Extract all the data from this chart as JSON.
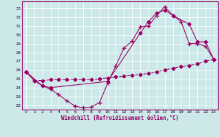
{
  "xlabel": "Windchill (Refroidissement éolien,°C)",
  "bg_color": "#cce8e8",
  "line_color": "#990066",
  "xmin": -0.5,
  "xmax": 23.5,
  "ymin": 21.5,
  "ymax": 33.8,
  "yticks": [
    22,
    23,
    24,
    25,
    26,
    27,
    28,
    29,
    30,
    31,
    32,
    33
  ],
  "xticks": [
    0,
    1,
    2,
    3,
    4,
    5,
    6,
    7,
    8,
    9,
    10,
    11,
    12,
    13,
    14,
    15,
    16,
    17,
    18,
    19,
    20,
    21,
    22,
    23
  ],
  "line1_x": [
    0,
    1,
    2,
    3,
    4,
    5,
    6,
    7,
    8,
    9,
    10,
    11,
    12,
    13,
    14,
    15,
    16,
    17,
    18,
    19,
    20,
    21,
    22,
    23
  ],
  "line1_y": [
    25.8,
    24.8,
    24.8,
    24.9,
    24.9,
    24.9,
    24.9,
    24.9,
    24.9,
    25.0,
    25.1,
    25.2,
    25.3,
    25.4,
    25.5,
    25.6,
    25.8,
    26.0,
    26.2,
    26.4,
    26.5,
    26.7,
    27.0,
    27.2
  ],
  "line2_x": [
    0,
    1,
    2,
    3,
    4,
    5,
    6,
    7,
    8,
    9,
    10,
    11,
    12,
    13,
    14,
    15,
    16,
    17,
    18,
    19,
    20,
    21,
    22,
    23
  ],
  "line2_y": [
    25.8,
    24.8,
    24.2,
    23.8,
    23.2,
    22.5,
    21.9,
    21.7,
    21.8,
    22.3,
    24.5,
    26.5,
    28.5,
    29.3,
    30.9,
    31.0,
    32.2,
    33.2,
    32.2,
    31.5,
    29.0,
    29.0,
    28.7,
    27.2
  ],
  "line3_x": [
    0,
    2,
    3,
    10,
    14,
    15,
    16,
    17,
    18,
    20,
    21,
    22,
    23
  ],
  "line3_y": [
    25.8,
    24.2,
    24.0,
    24.7,
    30.2,
    31.5,
    32.5,
    32.8,
    32.2,
    31.2,
    29.2,
    29.2,
    27.2
  ]
}
